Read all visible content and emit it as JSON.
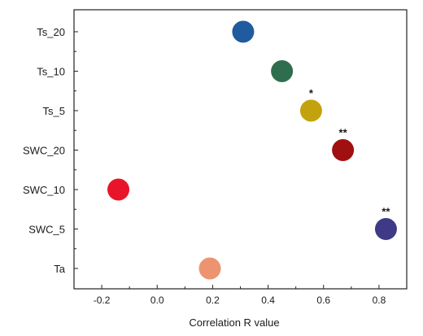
{
  "chart_data": {
    "type": "scatter",
    "title": "",
    "xlabel": "Correlation R value",
    "ylabel": "",
    "xlim": [
      -0.3,
      0.9
    ],
    "xticks": [
      "-0.2",
      "0.0",
      "0.2",
      "0.4",
      "0.6",
      "0.8"
    ],
    "categories": [
      "Ts_20",
      "Ts_10",
      "Ts_5",
      "SWC_20",
      "SWC_10",
      "SWC_5",
      "Ta"
    ],
    "points": [
      {
        "category": "Ts_20",
        "x": 0.31,
        "significance": "",
        "color": "#1f5b9e"
      },
      {
        "category": "Ts_10",
        "x": 0.45,
        "significance": "",
        "color": "#2e6e4e"
      },
      {
        "category": "Ts_5",
        "x": 0.555,
        "significance": "*",
        "color": "#c3a30d"
      },
      {
        "category": "SWC_20",
        "x": 0.67,
        "significance": "**",
        "color": "#a01010"
      },
      {
        "category": "SWC_10",
        "x": -0.14,
        "significance": "",
        "color": "#e8142a"
      },
      {
        "category": "SWC_5",
        "x": 0.825,
        "significance": "**",
        "color": "#3e3a86"
      },
      {
        "category": "Ta",
        "x": 0.19,
        "significance": "",
        "color": "#ec9470"
      }
    ],
    "grid": false,
    "legend": "none"
  }
}
